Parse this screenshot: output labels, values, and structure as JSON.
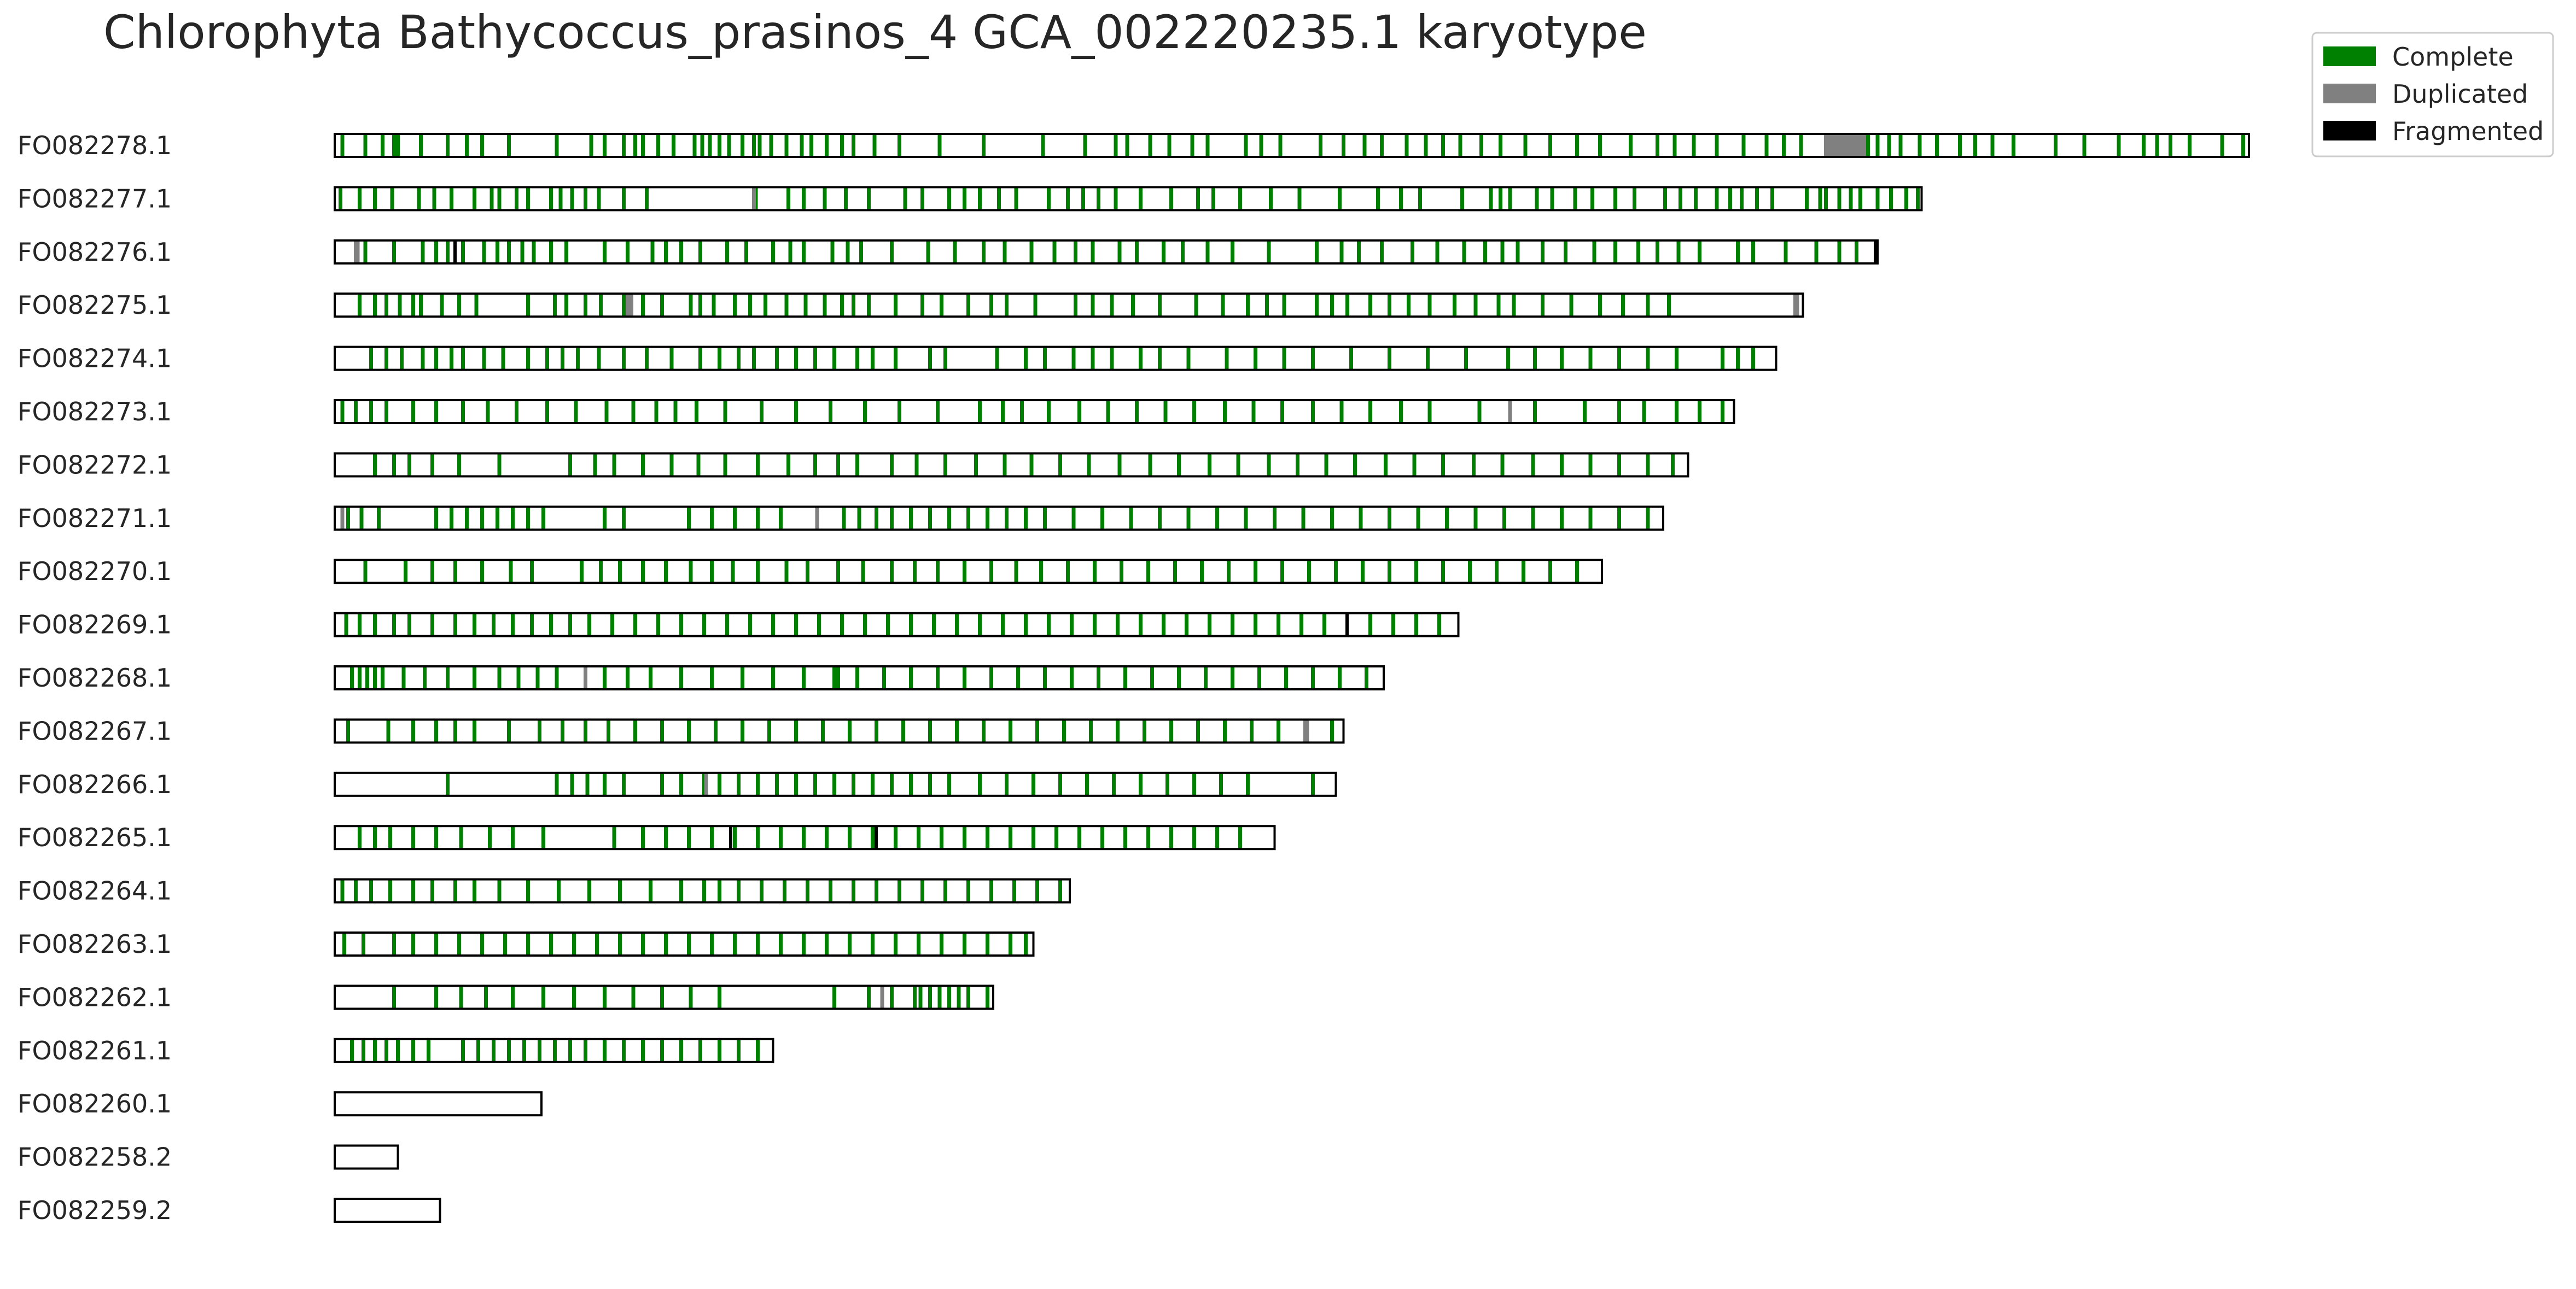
{
  "chart_data": {
    "type": "karyotype",
    "title": "Chlorophyta Bathycoccus_prasinos_4 GCA_002220235.1 karyotype",
    "legend": {
      "placement": "top-right",
      "entries": [
        {
          "label": "Complete",
          "color": "#008000"
        },
        {
          "label": "Duplicated",
          "color": "#808080"
        },
        {
          "label": "Fragmented",
          "color": "#000000"
        }
      ]
    },
    "chromosomes": [
      {
        "name": "FO082278.1",
        "length": 1.0,
        "complete": [
          0.003,
          0.015,
          0.024,
          0.03,
          0.032,
          0.044,
          0.058,
          0.068,
          0.076,
          0.09,
          0.115,
          0.133,
          0.14,
          0.15,
          0.156,
          0.16,
          0.168,
          0.176,
          0.187,
          0.191,
          0.195,
          0.2,
          0.205,
          0.212,
          0.218,
          0.221,
          0.227,
          0.235,
          0.243,
          0.248,
          0.256,
          0.264,
          0.27,
          0.281,
          0.294,
          0.315,
          0.338,
          0.369,
          0.391,
          0.407,
          0.413,
          0.425,
          0.435,
          0.447,
          0.455,
          0.475,
          0.483,
          0.493,
          0.514,
          0.526,
          0.537,
          0.546,
          0.559,
          0.569,
          0.578,
          0.587,
          0.598,
          0.608,
          0.621,
          0.634,
          0.648,
          0.66,
          0.676,
          0.69,
          0.699,
          0.709,
          0.721,
          0.735,
          0.747,
          0.756,
          0.765,
          0.792,
          0.8,
          0.805,
          0.811,
          0.817,
          0.827,
          0.836,
          0.848,
          0.856,
          0.865,
          0.876,
          0.898,
          0.913,
          0.931,
          0.944,
          0.951,
          0.958,
          0.968,
          0.985,
          0.996
        ],
        "duplicated": [
          [
            0.778,
            0.8
          ]
        ],
        "fragmented": []
      },
      {
        "name": "FO082277.1",
        "length": 0.829,
        "complete": [
          0.002,
          0.012,
          0.02,
          0.029,
          0.043,
          0.051,
          0.06,
          0.072,
          0.081,
          0.085,
          0.094,
          0.1,
          0.112,
          0.117,
          0.123,
          0.13,
          0.137,
          0.15,
          0.162,
          0.219,
          0.236,
          0.244,
          0.255,
          0.266,
          0.278,
          0.297,
          0.306,
          0.32,
          0.328,
          0.336,
          0.346,
          0.355,
          0.372,
          0.382,
          0.39,
          0.398,
          0.407,
          0.42,
          0.436,
          0.45,
          0.458,
          0.472,
          0.488,
          0.503,
          0.524,
          0.544,
          0.556,
          0.566,
          0.588,
          0.603,
          0.608,
          0.613,
          0.627,
          0.635,
          0.647,
          0.656,
          0.668,
          0.678,
          0.694,
          0.702,
          0.71,
          0.721,
          0.728,
          0.734,
          0.742,
          0.75,
          0.768,
          0.775,
          0.778,
          0.785,
          0.791,
          0.796,
          0.805,
          0.812,
          0.82,
          0.826
        ],
        "duplicated": [
          [
            0.218,
            0.22
          ]
        ],
        "fragmented": []
      },
      {
        "name": "FO082276.1",
        "length": 0.806,
        "complete": [
          0.015,
          0.03,
          0.045,
          0.052,
          0.058,
          0.066,
          0.077,
          0.084,
          0.09,
          0.097,
          0.103,
          0.112,
          0.12,
          0.14,
          0.152,
          0.165,
          0.172,
          0.18,
          0.19,
          0.204,
          0.214,
          0.228,
          0.237,
          0.244,
          0.259,
          0.267,
          0.274,
          0.29,
          0.309,
          0.323,
          0.338,
          0.349,
          0.363,
          0.375,
          0.386,
          0.395,
          0.409,
          0.418,
          0.432,
          0.442,
          0.455,
          0.468,
          0.487,
          0.512,
          0.525,
          0.534,
          0.546,
          0.562,
          0.575,
          0.589,
          0.6,
          0.609,
          0.617,
          0.63,
          0.642,
          0.657,
          0.668,
          0.68,
          0.69,
          0.701,
          0.712,
          0.732,
          0.74,
          0.757,
          0.773,
          0.785,
          0.794
        ],
        "duplicated": [
          [
            0.01,
            0.013
          ]
        ],
        "fragmented": [
          0.062,
          0.804
        ]
      },
      {
        "name": "FO082275.1",
        "length": 0.767,
        "complete": [
          0.012,
          0.02,
          0.026,
          0.033,
          0.04,
          0.044,
          0.055,
          0.064,
          0.073,
          0.1,
          0.114,
          0.12,
          0.13,
          0.138,
          0.15,
          0.16,
          0.17,
          0.185,
          0.19,
          0.197,
          0.208,
          0.216,
          0.224,
          0.235,
          0.245,
          0.255,
          0.264,
          0.27,
          0.278,
          0.292,
          0.306,
          0.316,
          0.33,
          0.342,
          0.35,
          0.365,
          0.386,
          0.395,
          0.405,
          0.416,
          0.43,
          0.449,
          0.463,
          0.476,
          0.486,
          0.495,
          0.512,
          0.52,
          0.528,
          0.54,
          0.55,
          0.56,
          0.571,
          0.584,
          0.595,
          0.607,
          0.615,
          0.63,
          0.645,
          0.66,
          0.672,
          0.685,
          0.696
        ],
        "duplicated": [
          [
            0.152,
            0.156
          ],
          [
            0.762,
            0.765
          ]
        ],
        "fragmented": []
      },
      {
        "name": "FO082274.1",
        "length": 0.753,
        "complete": [
          0.018,
          0.026,
          0.034,
          0.045,
          0.052,
          0.06,
          0.066,
          0.077,
          0.087,
          0.1,
          0.11,
          0.118,
          0.126,
          0.137,
          0.15,
          0.162,
          0.175,
          0.19,
          0.2,
          0.21,
          0.218,
          0.23,
          0.24,
          0.25,
          0.26,
          0.272,
          0.28,
          0.292,
          0.31,
          0.318,
          0.345,
          0.36,
          0.37,
          0.385,
          0.395,
          0.405,
          0.42,
          0.43,
          0.445,
          0.465,
          0.48,
          0.495,
          0.51,
          0.53,
          0.55,
          0.57,
          0.59,
          0.612,
          0.626,
          0.64,
          0.655,
          0.67,
          0.685,
          0.7,
          0.724,
          0.732,
          0.74
        ],
        "duplicated": [],
        "fragmented": []
      },
      {
        "name": "FO082273.1",
        "length": 0.731,
        "complete": [
          0.003,
          0.01,
          0.018,
          0.026,
          0.04,
          0.052,
          0.066,
          0.079,
          0.094,
          0.11,
          0.125,
          0.141,
          0.155,
          0.167,
          0.177,
          0.188,
          0.203,
          0.222,
          0.24,
          0.258,
          0.276,
          0.294,
          0.314,
          0.336,
          0.348,
          0.358,
          0.372,
          0.388,
          0.403,
          0.418,
          0.433,
          0.448,
          0.464,
          0.479,
          0.494,
          0.51,
          0.525,
          0.54,
          0.556,
          0.571,
          0.597,
          0.626,
          0.652,
          0.67,
          0.683,
          0.7,
          0.712,
          0.724
        ],
        "duplicated": [
          [
            0.613,
            0.615
          ]
        ],
        "fragmented": []
      },
      {
        "name": "FO082272.1",
        "length": 0.707,
        "complete": [
          0.02,
          0.03,
          0.038,
          0.05,
          0.064,
          0.085,
          0.122,
          0.135,
          0.145,
          0.16,
          0.175,
          0.189,
          0.203,
          0.22,
          0.236,
          0.25,
          0.262,
          0.272,
          0.29,
          0.303,
          0.318,
          0.334,
          0.349,
          0.363,
          0.378,
          0.393,
          0.409,
          0.425,
          0.44,
          0.456,
          0.471,
          0.487,
          0.502,
          0.517,
          0.532,
          0.548,
          0.563,
          0.578,
          0.594,
          0.609,
          0.625,
          0.64,
          0.655,
          0.67,
          0.685,
          0.698
        ],
        "duplicated": [],
        "fragmented": []
      },
      {
        "name": "FO082271.1",
        "length": 0.694,
        "complete": [
          0.006,
          0.013,
          0.022,
          0.052,
          0.06,
          0.068,
          0.076,
          0.084,
          0.092,
          0.1,
          0.108,
          0.14,
          0.15,
          0.184,
          0.196,
          0.208,
          0.22,
          0.232,
          0.265,
          0.273,
          0.282,
          0.29,
          0.3,
          0.31,
          0.32,
          0.33,
          0.34,
          0.35,
          0.36,
          0.37,
          0.385,
          0.4,
          0.415,
          0.43,
          0.445,
          0.46,
          0.475,
          0.49,
          0.505,
          0.52,
          0.535,
          0.55,
          0.565,
          0.58,
          0.595,
          0.61,
          0.625,
          0.64,
          0.655,
          0.67,
          0.685
        ],
        "duplicated": [
          [
            0.003,
            0.005
          ],
          [
            0.251,
            0.253
          ]
        ],
        "fragmented": []
      },
      {
        "name": "FO082270.1",
        "length": 0.662,
        "complete": [
          0.015,
          0.036,
          0.05,
          0.062,
          0.076,
          0.091,
          0.102,
          0.128,
          0.138,
          0.148,
          0.16,
          0.172,
          0.185,
          0.196,
          0.207,
          0.22,
          0.235,
          0.246,
          0.262,
          0.275,
          0.29,
          0.302,
          0.314,
          0.328,
          0.342,
          0.355,
          0.368,
          0.382,
          0.396,
          0.41,
          0.424,
          0.438,
          0.452,
          0.466,
          0.48,
          0.494,
          0.508,
          0.522,
          0.536,
          0.55,
          0.564,
          0.578,
          0.592,
          0.606,
          0.62,
          0.634,
          0.648
        ],
        "duplicated": [],
        "fragmented": []
      },
      {
        "name": "FO082269.1",
        "length": 0.587,
        "complete": [
          0.005,
          0.012,
          0.02,
          0.03,
          0.038,
          0.05,
          0.062,
          0.072,
          0.082,
          0.092,
          0.102,
          0.112,
          0.122,
          0.132,
          0.144,
          0.156,
          0.168,
          0.18,
          0.192,
          0.204,
          0.216,
          0.228,
          0.24,
          0.252,
          0.264,
          0.276,
          0.288,
          0.3,
          0.312,
          0.324,
          0.336,
          0.348,
          0.36,
          0.372,
          0.384,
          0.396,
          0.408,
          0.42,
          0.432,
          0.444,
          0.456,
          0.468,
          0.48,
          0.492,
          0.504,
          0.516,
          0.54,
          0.552,
          0.564,
          0.576
        ],
        "duplicated": [],
        "fragmented": [
          0.528
        ]
      },
      {
        "name": "FO082268.1",
        "length": 0.548,
        "complete": [
          0.008,
          0.012,
          0.016,
          0.02,
          0.024,
          0.035,
          0.046,
          0.058,
          0.072,
          0.085,
          0.095,
          0.105,
          0.115,
          0.14,
          0.152,
          0.164,
          0.18,
          0.196,
          0.212,
          0.228,
          0.244,
          0.26,
          0.262,
          0.272,
          0.286,
          0.3,
          0.314,
          0.328,
          0.342,
          0.356,
          0.37,
          0.384,
          0.398,
          0.412,
          0.426,
          0.44,
          0.454,
          0.468,
          0.482,
          0.496,
          0.51,
          0.524,
          0.538
        ],
        "duplicated": [
          [
            0.13,
            0.132
          ]
        ],
        "fragmented": []
      },
      {
        "name": "FO082267.1",
        "length": 0.527,
        "complete": [
          0.006,
          0.027,
          0.04,
          0.052,
          0.062,
          0.072,
          0.09,
          0.106,
          0.118,
          0.13,
          0.142,
          0.156,
          0.17,
          0.184,
          0.198,
          0.212,
          0.226,
          0.24,
          0.254,
          0.268,
          0.282,
          0.296,
          0.31,
          0.324,
          0.338,
          0.352,
          0.366,
          0.38,
          0.394,
          0.408,
          0.422,
          0.436,
          0.45,
          0.464,
          0.478,
          0.492,
          0.506,
          0.52
        ],
        "duplicated": [
          [
            0.506,
            0.509
          ]
        ],
        "fragmented": []
      },
      {
        "name": "FO082266.1",
        "length": 0.523,
        "complete": [
          0.058,
          0.115,
          0.123,
          0.131,
          0.14,
          0.15,
          0.17,
          0.18,
          0.192,
          0.2,
          0.21,
          0.22,
          0.23,
          0.24,
          0.25,
          0.26,
          0.27,
          0.28,
          0.29,
          0.3,
          0.31,
          0.32,
          0.336,
          0.35,
          0.364,
          0.378,
          0.392,
          0.406,
          0.42,
          0.434,
          0.448,
          0.462,
          0.476,
          0.51
        ],
        "duplicated": [
          [
            0.193,
            0.195
          ]
        ],
        "fragmented": []
      },
      {
        "name": "FO082265.1",
        "length": 0.491,
        "complete": [
          0.012,
          0.02,
          0.028,
          0.04,
          0.052,
          0.065,
          0.08,
          0.092,
          0.108,
          0.145,
          0.16,
          0.172,
          0.184,
          0.196,
          0.208,
          0.22,
          0.232,
          0.244,
          0.256,
          0.268,
          0.28,
          0.292,
          0.304,
          0.316,
          0.328,
          0.34,
          0.352,
          0.364,
          0.376,
          0.388,
          0.4,
          0.412,
          0.424,
          0.436,
          0.448,
          0.46,
          0.472
        ],
        "duplicated": [],
        "fragmented": [
          0.206,
          0.282
        ]
      },
      {
        "name": "FO082264.1",
        "length": 0.384,
        "complete": [
          0.003,
          0.01,
          0.018,
          0.028,
          0.04,
          0.05,
          0.062,
          0.072,
          0.085,
          0.1,
          0.116,
          0.132,
          0.148,
          0.164,
          0.18,
          0.192,
          0.2,
          0.21,
          0.222,
          0.234,
          0.246,
          0.258,
          0.27,
          0.282,
          0.294,
          0.306,
          0.318,
          0.33,
          0.342,
          0.354,
          0.366,
          0.378
        ],
        "duplicated": [],
        "fragmented": []
      },
      {
        "name": "FO082263.1",
        "length": 0.365,
        "complete": [
          0.004,
          0.014,
          0.03,
          0.04,
          0.052,
          0.064,
          0.076,
          0.088,
          0.1,
          0.112,
          0.124,
          0.136,
          0.148,
          0.16,
          0.172,
          0.184,
          0.196,
          0.208,
          0.22,
          0.232,
          0.244,
          0.256,
          0.268,
          0.28,
          0.292,
          0.304,
          0.316,
          0.328,
          0.34,
          0.352,
          0.36
        ],
        "duplicated": [],
        "fragmented": []
      },
      {
        "name": "FO082262.1",
        "length": 0.344,
        "complete": [
          0.03,
          0.052,
          0.065,
          0.078,
          0.092,
          0.108,
          0.124,
          0.14,
          0.155,
          0.17,
          0.185,
          0.2,
          0.26,
          0.278,
          0.29,
          0.302,
          0.305,
          0.31,
          0.315,
          0.32,
          0.325,
          0.33,
          0.34
        ],
        "duplicated": [
          [
            0.285,
            0.287
          ]
        ],
        "fragmented": []
      },
      {
        "name": "FO082261.1",
        "length": 0.229,
        "complete": [
          0.008,
          0.014,
          0.02,
          0.026,
          0.032,
          0.04,
          0.048,
          0.066,
          0.074,
          0.082,
          0.09,
          0.098,
          0.106,
          0.114,
          0.122,
          0.13,
          0.14,
          0.15,
          0.16,
          0.17,
          0.18,
          0.19,
          0.2,
          0.21,
          0.22
        ],
        "duplicated": [],
        "fragmented": []
      },
      {
        "name": "FO082260.1",
        "length": 0.108,
        "complete": [],
        "duplicated": [],
        "fragmented": []
      },
      {
        "name": "FO082258.2",
        "length": 0.033,
        "complete": [],
        "duplicated": [],
        "fragmented": []
      },
      {
        "name": "FO082259.2",
        "length": 0.055,
        "complete": [],
        "duplicated": [],
        "fragmented": []
      }
    ]
  }
}
